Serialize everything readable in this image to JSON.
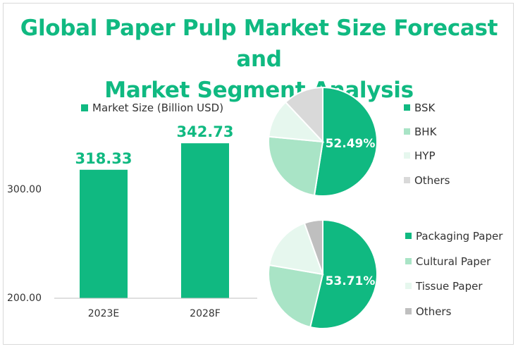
{
  "title_line1": "Global Paper Pulp Market Size Forecast and",
  "title_line2": "Market Segment Analysis",
  "chart_data": [
    {
      "type": "bar",
      "categories": [
        "2023E",
        "2028F"
      ],
      "series": [
        {
          "name": "Market Size (Billion USD)",
          "values": [
            318.33,
            342.73
          ],
          "labels": [
            "318.33",
            "342.73"
          ]
        }
      ],
      "ylim": [
        200,
        400
      ],
      "yticks": [
        "200.00",
        "300.00"
      ],
      "color": "#10b981",
      "legend": "top",
      "grid": false
    },
    {
      "type": "pie",
      "categories": [
        "BSK",
        "BHK",
        "HYP",
        "Others"
      ],
      "values": [
        52.49,
        24.0,
        11.5,
        12.01
      ],
      "colors": [
        "#10b981",
        "#a9e4c6",
        "#e6f7ee",
        "#d9d9d9"
      ],
      "shown_label": "52.49%",
      "legend": "right"
    },
    {
      "type": "pie",
      "categories": [
        "Packaging Paper",
        "Cultural Paper",
        "Tissue Paper",
        "Others"
      ],
      "values": [
        53.71,
        24.0,
        16.8,
        5.49
      ],
      "colors": [
        "#10b981",
        "#a9e4c6",
        "#e6f7ee",
        "#bfbfbf"
      ],
      "shown_label": "53.71%",
      "legend": "right"
    }
  ]
}
